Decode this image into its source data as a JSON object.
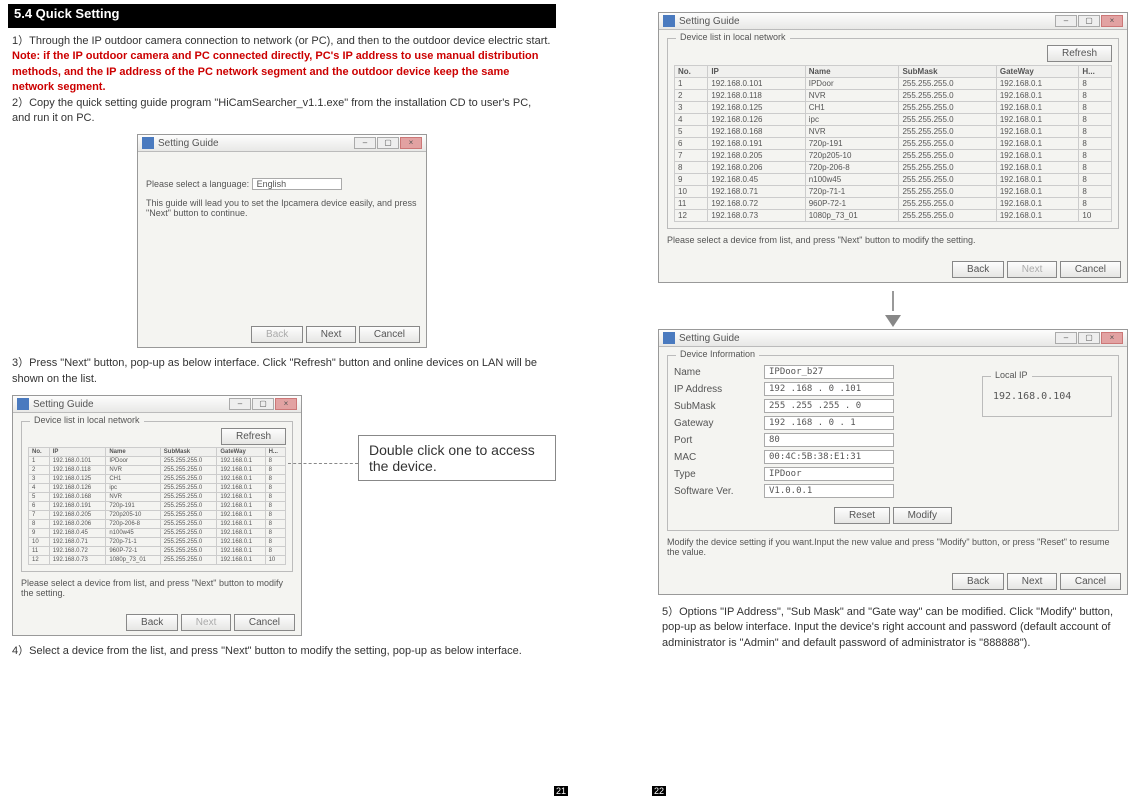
{
  "section_header": "5.4 Quick Setting",
  "step1": "1）Through the IP outdoor camera connection to network (or PC), and then to the outdoor device electric start.",
  "note": "Note: if the IP outdoor camera and PC connected directly, PC's IP address to use manual distribution methods, and the IP address of the PC network segment and the outdoor device keep the same network segment.",
  "step2": "2）Copy the quick setting guide program \"HiCamSearcher_v1.1.exe\" from the installation CD to user's PC, and run it on PC.",
  "step3": "3）Press \"Next\" button, pop-up as below interface. Click \"Refresh\" button and online devices on LAN will be shown on the list.",
  "step4": "4）Select a device from the list, and press \"Next\" button to modify the setting, pop-up as below interface.",
  "step5": "5）Options \"IP Address\", \"Sub Mask\" and \"Gate way\" can be modified. Click \"Modify\" button, pop-up as below interface. Input the device's right account and password (default account of administrator is \"Admin\" and default password of administrator is \"888888\").",
  "callout": "Double click one to access the device.",
  "win_title": "Setting Guide",
  "lang_label": "Please select a language:",
  "lang_value": "English",
  "lang_hint": "This guide will lead you to set the Ipcamera device easily, and press \"Next\" button to continue.",
  "refresh": "Refresh",
  "back": "Back",
  "next": "Next",
  "cancel": "Cancel",
  "reset": "Reset",
  "modify": "Modify",
  "list_label": "Device list in local network",
  "list_hint": "Please select a device from list, and press \"Next\" button to modify the setting.",
  "cols": [
    "No.",
    "IP",
    "Name",
    "SubMask",
    "GateWay",
    "H..."
  ],
  "rows": [
    [
      "1",
      "192.168.0.101",
      "IPDoor",
      "255.255.255.0",
      "192.168.0.1",
      "8"
    ],
    [
      "2",
      "192.168.0.118",
      "NVR",
      "255.255.255.0",
      "192.168.0.1",
      "8"
    ],
    [
      "3",
      "192.168.0.125",
      "CH1",
      "255.255.255.0",
      "192.168.0.1",
      "8"
    ],
    [
      "4",
      "192.168.0.126",
      "ipc",
      "255.255.255.0",
      "192.168.0.1",
      "8"
    ],
    [
      "5",
      "192.168.0.168",
      "NVR",
      "255.255.255.0",
      "192.168.0.1",
      "8"
    ],
    [
      "6",
      "192.168.0.191",
      "720p-191",
      "255.255.255.0",
      "192.168.0.1",
      "8"
    ],
    [
      "7",
      "192.168.0.205",
      "720p205-10",
      "255.255.255.0",
      "192.168.0.1",
      "8"
    ],
    [
      "8",
      "192.168.0.206",
      "720p-206-8",
      "255.255.255.0",
      "192.168.0.1",
      "8"
    ],
    [
      "9",
      "192.168.0.45",
      "n100w45",
      "255.255.255.0",
      "192.168.0.1",
      "8"
    ],
    [
      "10",
      "192.168.0.71",
      "720p-71-1",
      "255.255.255.0",
      "192.168.0.1",
      "8"
    ],
    [
      "11",
      "192.168.0.72",
      "960P-72-1",
      "255.255.255.0",
      "192.168.0.1",
      "8"
    ],
    [
      "12",
      "192.168.0.73",
      "1080p_73_01",
      "255.255.255.0",
      "192.168.0.1",
      "10"
    ]
  ],
  "info_label": "Device Information",
  "info_hint": "Modify the device setting if you want.Input the new value and press \"Modify\" button, or press \"Reset\" to resume the value.",
  "f_name": "Name",
  "v_name": "IPDoor_b27",
  "f_ip": "IP Address",
  "v_ip": "192 .168 . 0 .101",
  "f_sub": "SubMask",
  "v_sub": "255 .255 .255 . 0",
  "f_gw": "Gateway",
  "v_gw": "192 .168 . 0 . 1",
  "f_port": "Port",
  "v_port": "80",
  "f_mac": "MAC",
  "v_mac": "00:4C:5B:38:E1:31",
  "f_type": "Type",
  "v_type": "IPDoor",
  "f_ver": "Software Ver.",
  "v_ver": "V1.0.0.1",
  "local_ip_label": "Local IP",
  "local_ip": "192.168.0.104",
  "pg_left": "21",
  "pg_right": "22"
}
